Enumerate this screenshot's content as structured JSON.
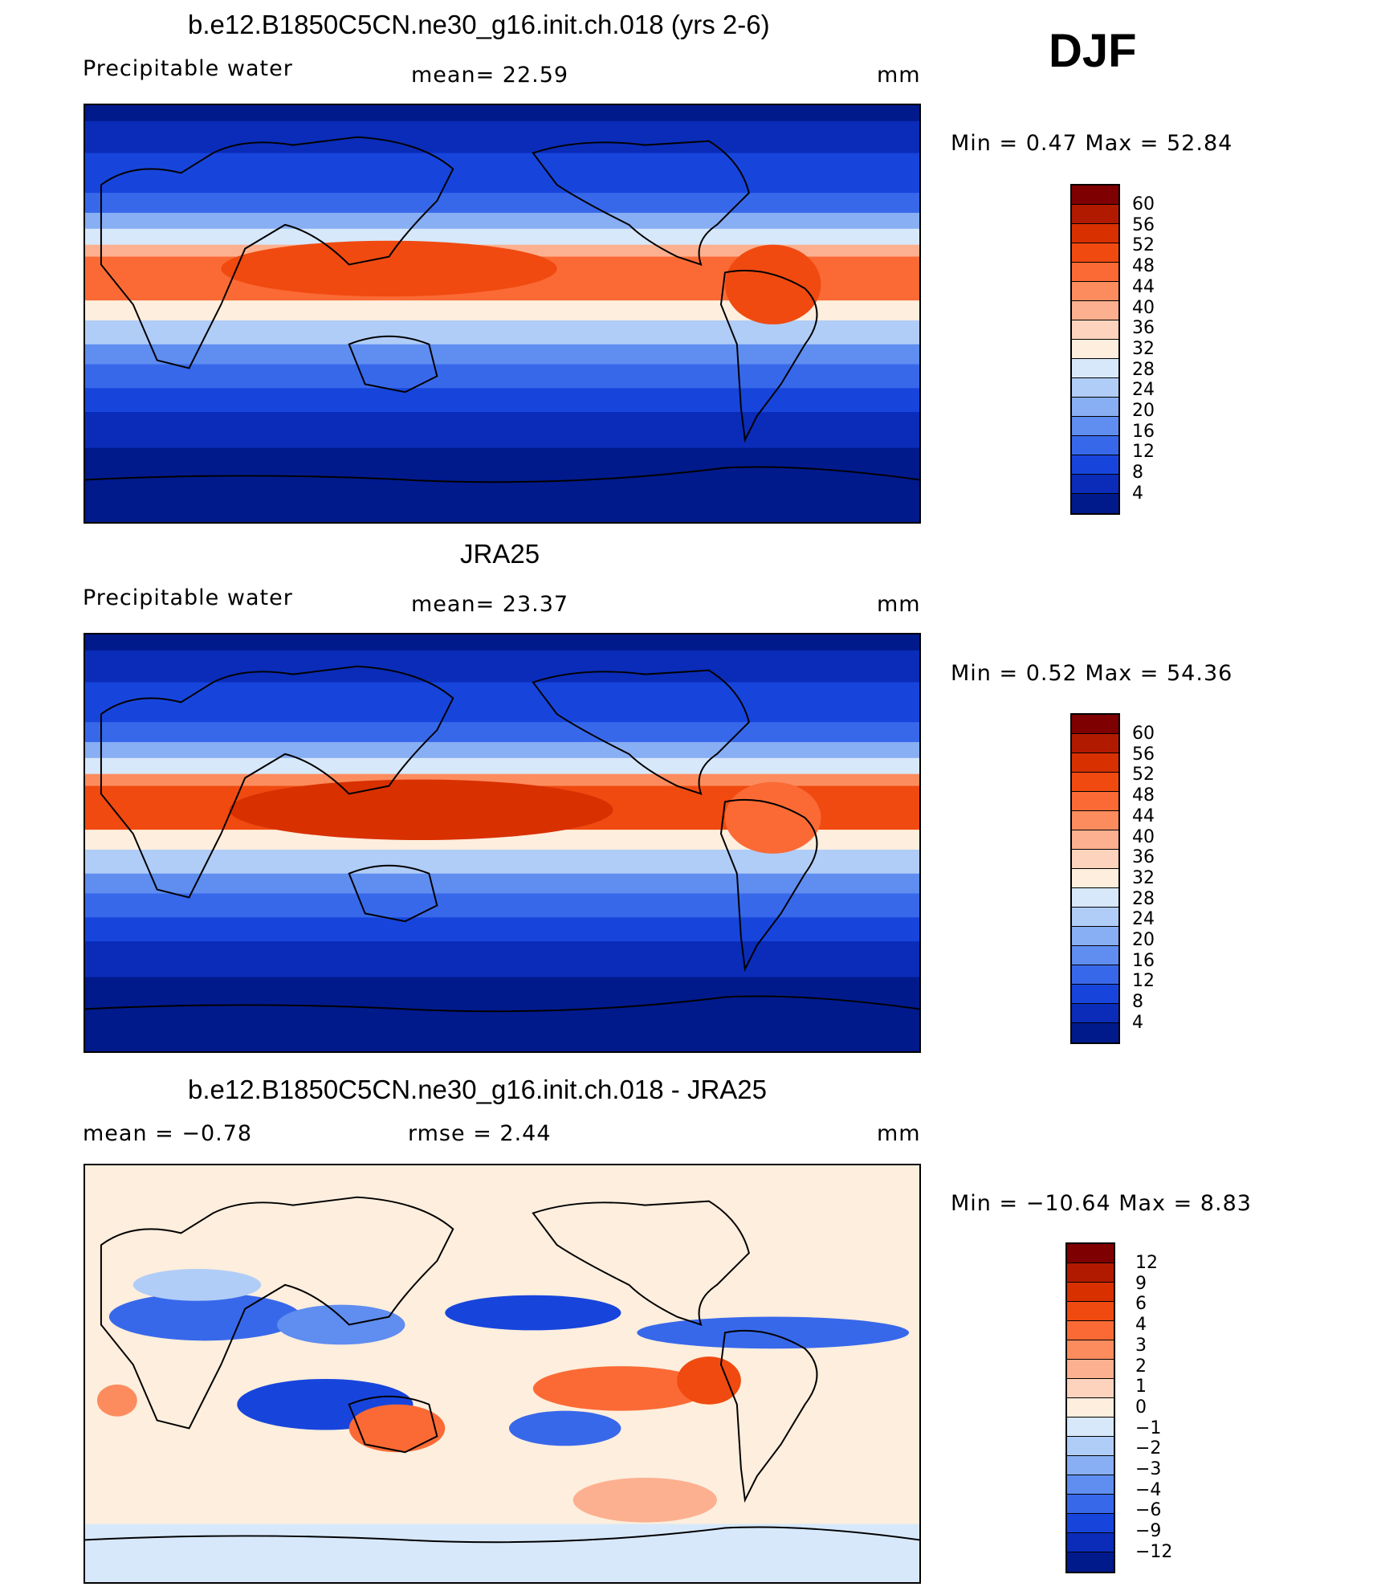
{
  "season": "DJF",
  "panels": [
    {
      "title": "b.e12.B1850C5CN.ne30_g16.init.ch.018 (yrs 2-6)",
      "left_label": "Precipitable  water",
      "stat1": "mean=   22.59",
      "units": "mm",
      "minmax": "Min  =     0.47  Max  =    52.84",
      "kind": "pw"
    },
    {
      "title": "JRA25",
      "left_label": "Precipitable  water",
      "stat1": "mean=   23.37",
      "units": "mm",
      "minmax": "Min  =     0.52  Max  =    54.36",
      "kind": "pw"
    },
    {
      "title": "b.e12.B1850C5CN.ne30_g16.init.ch.018 - JRA25",
      "left_label": "mean  =    −0.78",
      "stat1": "rmse  =      2.44",
      "units": "mm",
      "minmax": "Min  =  −10.64  Max  =      8.83",
      "kind": "diff"
    }
  ],
  "colorbars": {
    "pw": {
      "labels": [
        "60",
        "56",
        "52",
        "48",
        "44",
        "40",
        "36",
        "32",
        "28",
        "24",
        "20",
        "16",
        "12",
        "8",
        "4"
      ],
      "colors": [
        "#7f0000",
        "#b21a00",
        "#d93000",
        "#f04a10",
        "#fb6a35",
        "#fc8c5e",
        "#fcb08f",
        "#fdd3bd",
        "#fdeedd",
        "#d7e8fb",
        "#b0cdf7",
        "#88aef3",
        "#5f8df0",
        "#3868ea",
        "#1745dc",
        "#0a2cb8",
        "#001a8c"
      ]
    },
    "diff": {
      "labels": [
        "12",
        "9",
        "6",
        "4",
        "3",
        "2",
        "1",
        "0",
        "−1",
        "−2",
        "−3",
        "−4",
        "−6",
        "−9",
        "−12"
      ],
      "colors": [
        "#7f0000",
        "#b21a00",
        "#d93000",
        "#f04a10",
        "#fb6a35",
        "#fc8c5e",
        "#fcb08f",
        "#fdd3bd",
        "#fdeedd",
        "#d7e8fb",
        "#b0cdf7",
        "#88aef3",
        "#5f8df0",
        "#3868ea",
        "#1745dc",
        "#0a2cb8",
        "#001a8c"
      ]
    }
  }
}
